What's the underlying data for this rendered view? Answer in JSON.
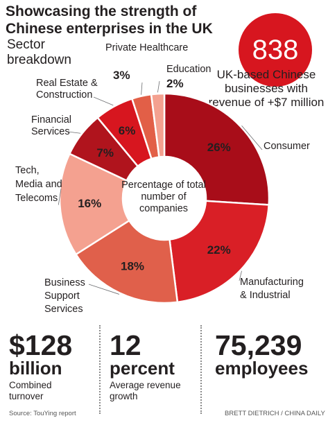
{
  "header": {
    "title": "Showcasing the strength of Chinese enterprises in the UK",
    "subtitle": "Sector breakdown"
  },
  "highlight": {
    "number": "838",
    "text": "UK-based Chinese businesses with revenue of +$7 million"
  },
  "center_label": "Percentage of total number of companies",
  "colors": {
    "Consumer": "#a80d19",
    "Manufacturing & Industrial": "#d91f26",
    "Business Support Services": "#e0604b",
    "Tech, Media and Telecoms": "#f4a190",
    "Financial Services": "#b0141d",
    "Real Estate & Construction": "#d7161f",
    "Private Healthcare": "#e25f47",
    "Education": "#f4a190",
    "highlight": "#d7161f"
  },
  "chart_data": {
    "type": "pie",
    "donut": true,
    "categories": [
      "Consumer",
      "Manufacturing & Industrial",
      "Business Support Services",
      "Tech, Media and Telecoms",
      "Financial Services",
      "Real Estate & Construction",
      "Private Healthcare",
      "Education"
    ],
    "values": [
      26,
      22,
      18,
      16,
      7,
      6,
      3,
      2
    ],
    "value_labels": [
      "26%",
      "22%",
      "18%",
      "16%",
      "7%",
      "6%",
      "3%",
      "2%"
    ],
    "labels": {
      "consumer": "Consumer",
      "manufacturing": "Manufacturing & Industrial",
      "business": "Business Support Services",
      "tech": "Tech, Media and Telecoms",
      "financial": "Financial Services",
      "realestate": "Real Estate & Construction",
      "healthcare": "Private Healthcare",
      "education": "Education"
    }
  },
  "stats": [
    {
      "value": "$128",
      "unit": "billion",
      "desc": "Combined turnover"
    },
    {
      "value": "12",
      "unit": "percent",
      "desc": "Average revenue growth"
    },
    {
      "value": "75,239",
      "unit": "employees",
      "desc": ""
    }
  ],
  "footer": {
    "source": "Source:  TouYing report",
    "credit": "BRETT DIETRICH / CHINA DAILY"
  }
}
